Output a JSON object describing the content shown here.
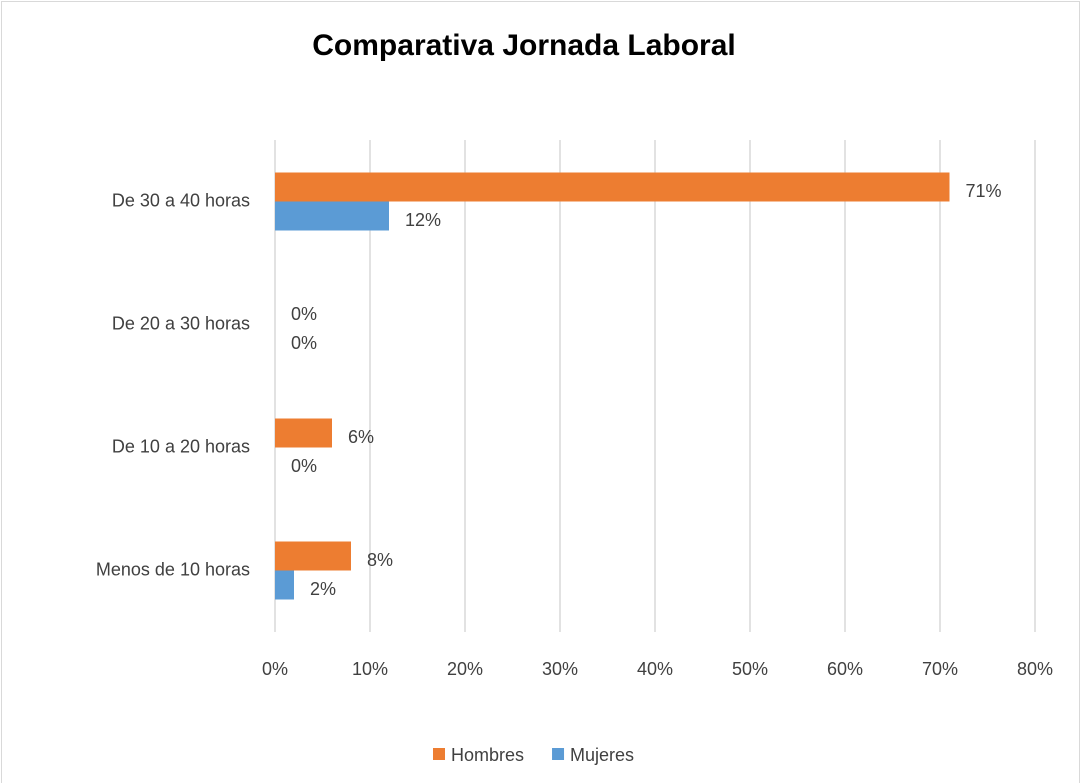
{
  "chart_data": {
    "type": "bar",
    "orientation": "horizontal",
    "title": "Comparativa Jornada Laboral",
    "categories": [
      "De 30 a 40 horas",
      "De 20 a 30 horas",
      "De 10 a 20 horas",
      "Menos de 10 horas"
    ],
    "series": [
      {
        "name": "Hombres",
        "color": "#ed7d31",
        "values": [
          71,
          0,
          6,
          8
        ],
        "value_labels": [
          "71%",
          "0%",
          "6%",
          "8%"
        ]
      },
      {
        "name": "Mujeres",
        "color": "#5b9bd5",
        "values": [
          12,
          0,
          0,
          2
        ],
        "value_labels": [
          "12%",
          "0%",
          "0%",
          "2%"
        ]
      }
    ],
    "xlim": [
      0,
      80
    ],
    "xticks": [
      {
        "value": 0,
        "label": "0%"
      },
      {
        "value": 10,
        "label": "10%"
      },
      {
        "value": 20,
        "label": "20%"
      },
      {
        "value": 30,
        "label": "30%"
      },
      {
        "value": 40,
        "label": "40%"
      },
      {
        "value": 50,
        "label": "50%"
      },
      {
        "value": 60,
        "label": "60%"
      },
      {
        "value": 70,
        "label": "70%"
      },
      {
        "value": 80,
        "label": "80%"
      }
    ],
    "grid": true,
    "legend": "bottom"
  }
}
